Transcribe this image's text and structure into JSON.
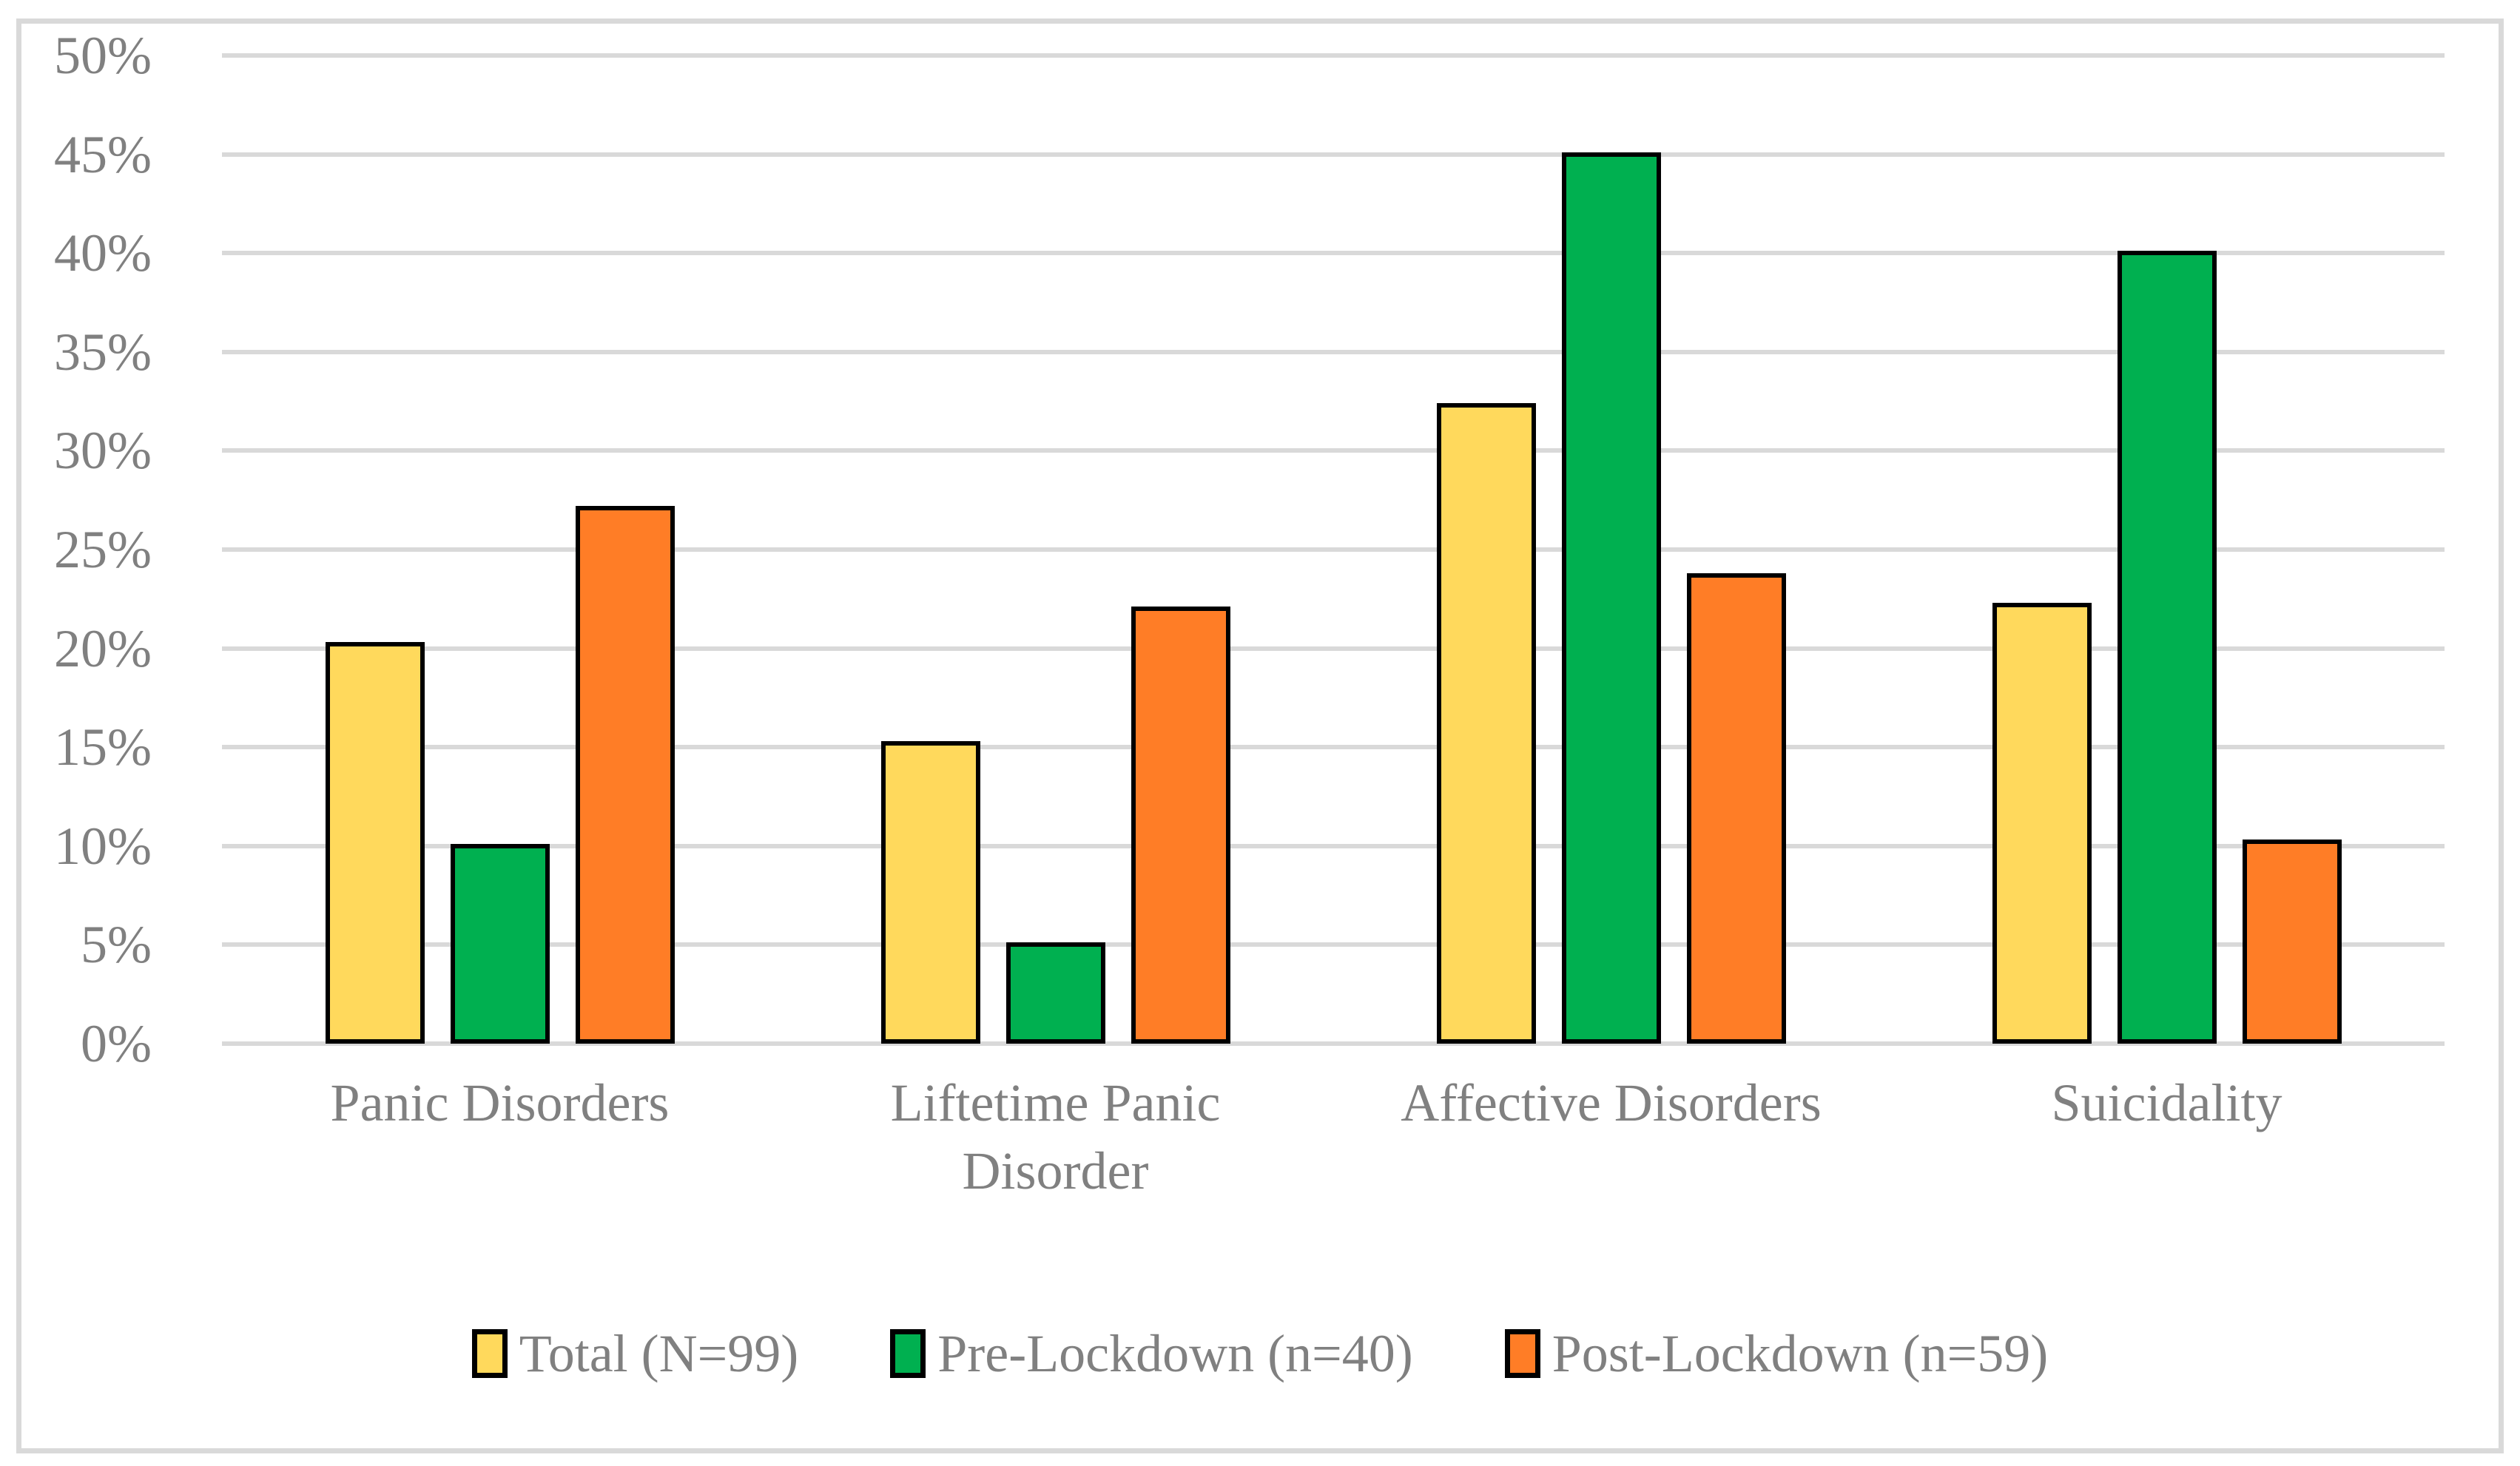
{
  "chart": {
    "frame_border_color": "#D9D9D9",
    "grid_color": "#D9D9D9",
    "axis_text_color": "#808080",
    "bar_border_color": "#000000",
    "background_color": "#FFFFFF"
  },
  "chart_data": {
    "type": "bar",
    "title": "",
    "xlabel": "",
    "ylabel": "",
    "categories": [
      "Panic Disorders",
      "Liftetime Panic Disorder",
      "Affective Disorders",
      "Suicidality"
    ],
    "category_label_lines": [
      [
        "Panic Disorders"
      ],
      [
        "Liftetime Panic",
        "Disorder"
      ],
      [
        "Affective Disorders"
      ],
      [
        "Suicidality"
      ]
    ],
    "series": [
      {
        "name": "Total (N=99)",
        "color": "#FFD95C",
        "values": [
          20.2,
          15.2,
          32.3,
          22.2
        ]
      },
      {
        "name": "Pre-Lockdown (n=40)",
        "color": "#00B050",
        "values": [
          10.0,
          5.0,
          45.0,
          40.0
        ]
      },
      {
        "name": "Post-Lockdown (n=59)",
        "color": "#FF7D26",
        "values": [
          27.1,
          22.0,
          23.7,
          10.2
        ]
      }
    ],
    "ylim": [
      0,
      50
    ],
    "y_tick_step": 5,
    "y_ticks": [
      "0%",
      "5%",
      "10%",
      "15%",
      "20%",
      "25%",
      "30%",
      "35%",
      "40%",
      "45%",
      "50%"
    ],
    "grid": true,
    "legend_position": "bottom"
  }
}
